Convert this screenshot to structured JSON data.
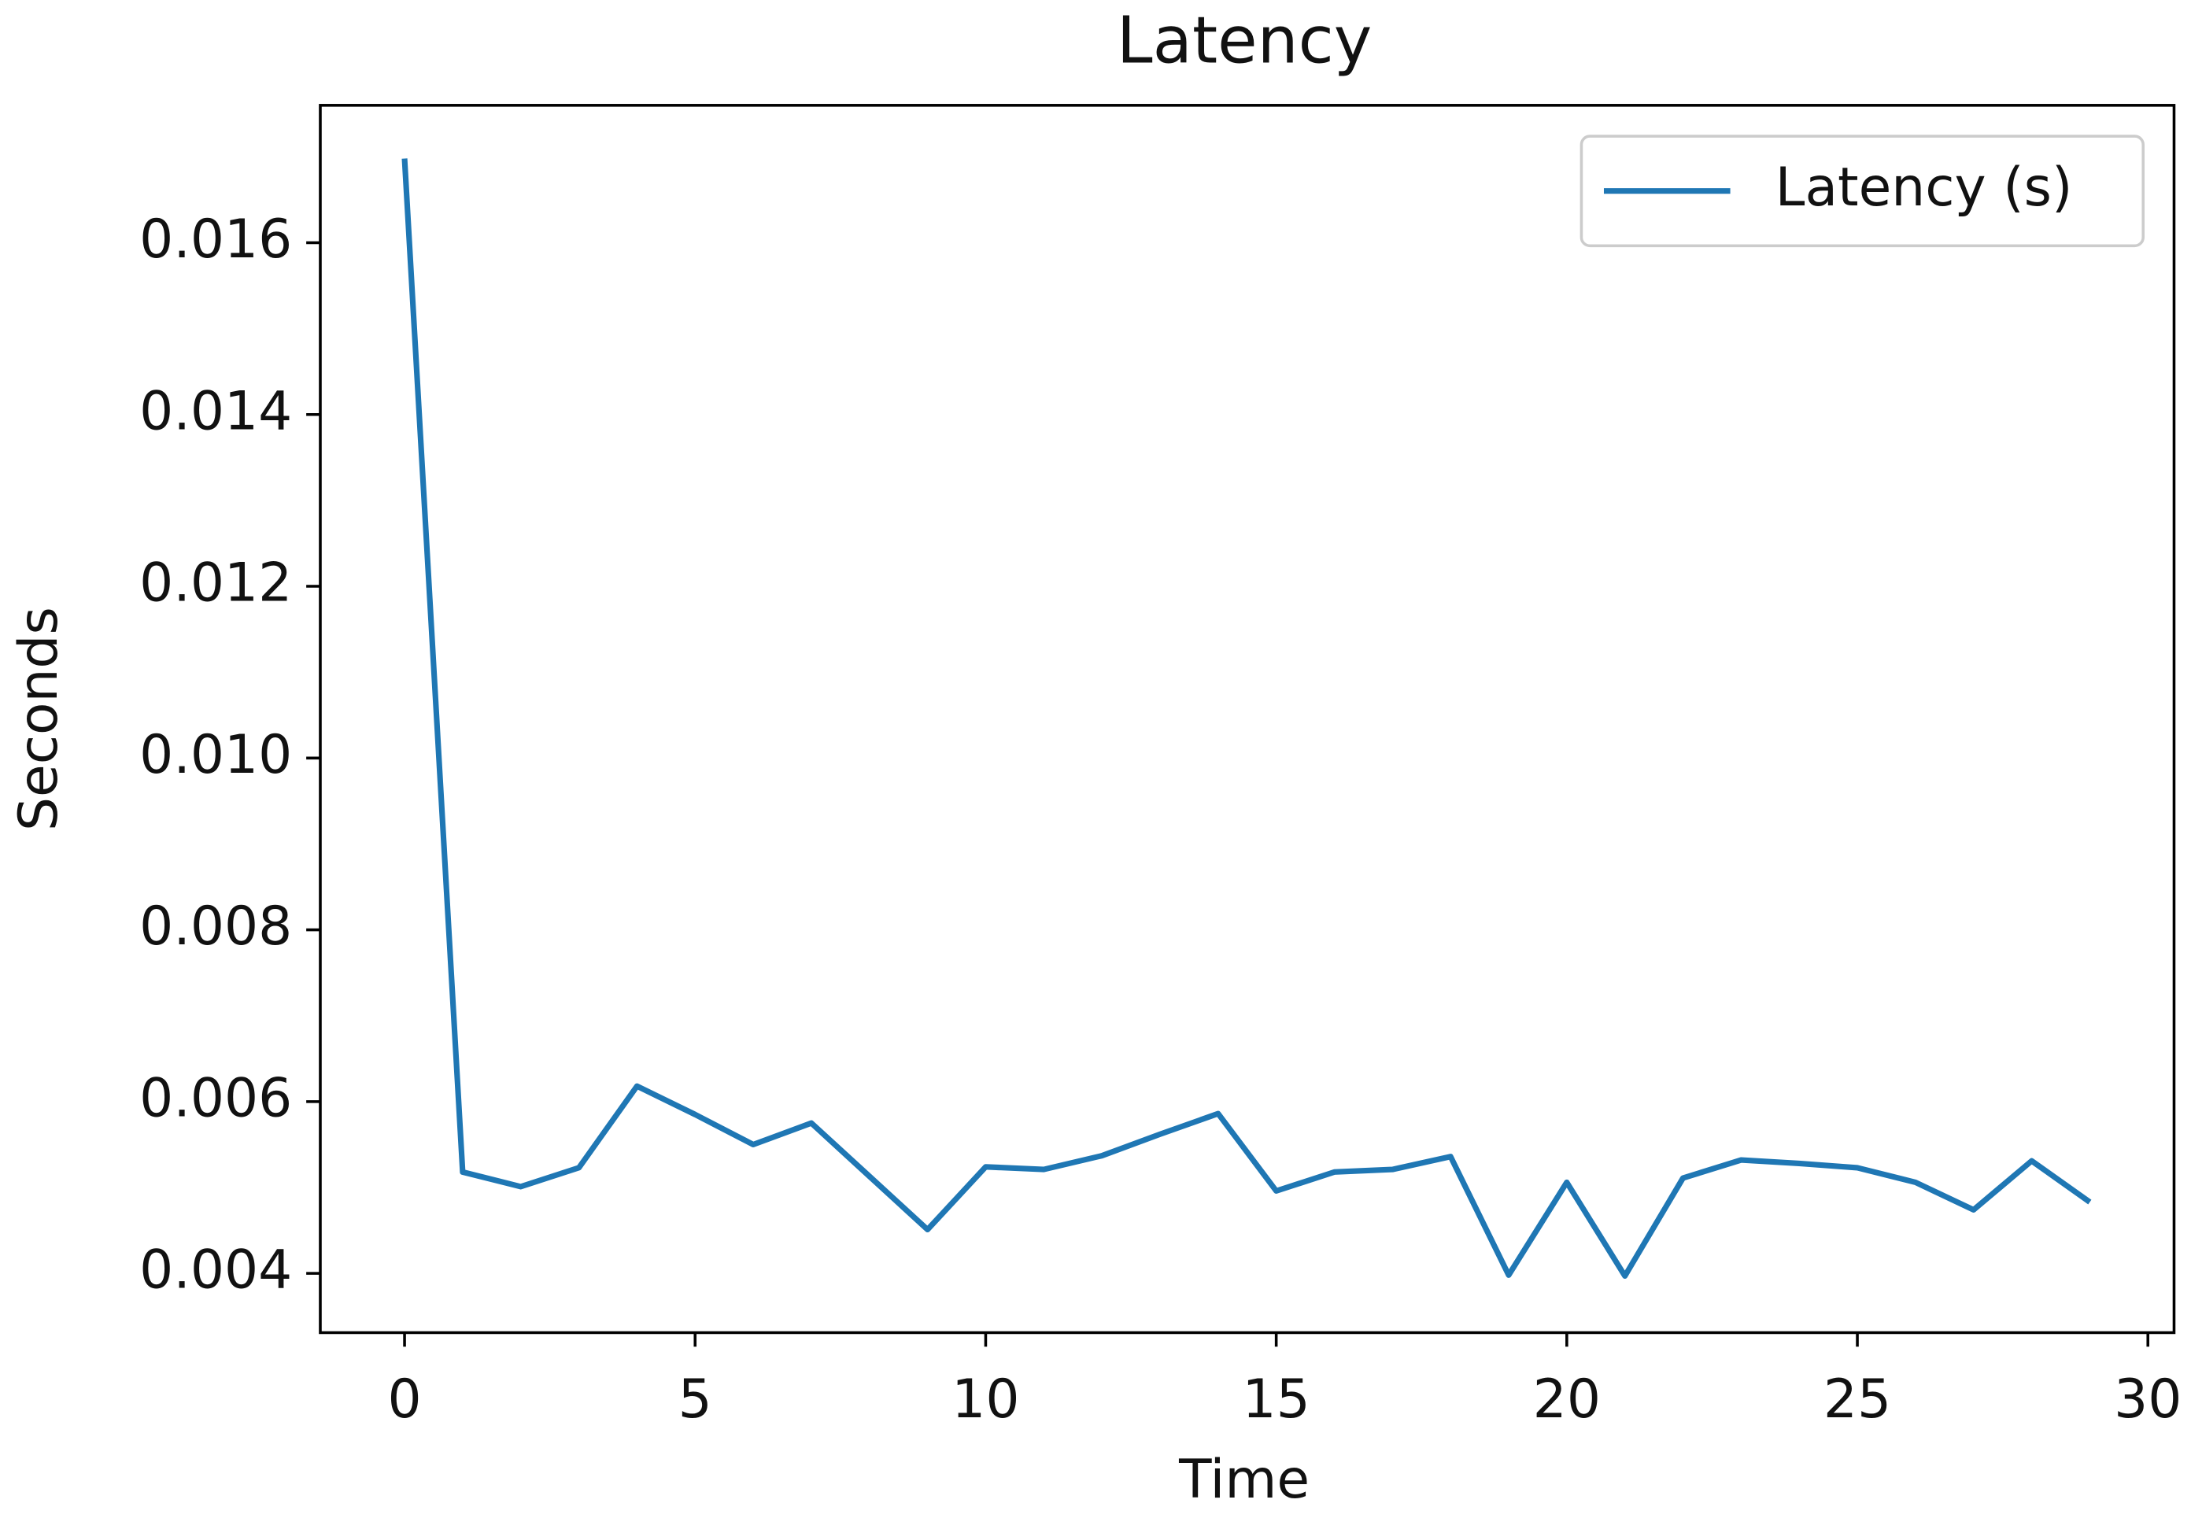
{
  "chart_data": {
    "type": "line",
    "title": "Latency",
    "xlabel": "Time",
    "ylabel": "Seconds",
    "x": [
      0,
      1,
      2,
      3,
      4,
      5,
      6,
      7,
      8,
      9,
      10,
      11,
      12,
      13,
      14,
      15,
      16,
      17,
      18,
      19,
      20,
      21,
      22,
      23,
      24,
      25,
      26,
      27,
      28,
      29
    ],
    "series": [
      {
        "name": "Latency (s)",
        "color": "#1f77b4",
        "values": [
          0.01698,
          0.00518,
          0.00501,
          0.00523,
          0.00618,
          0.00585,
          0.0055,
          0.00575,
          0.00513,
          0.00451,
          0.00524,
          0.00521,
          0.00537,
          0.00562,
          0.00586,
          0.00496,
          0.00518,
          0.00521,
          0.00536,
          0.00398,
          0.00506,
          0.00397,
          0.00511,
          0.00532,
          0.00528,
          0.00523,
          0.00506,
          0.00474,
          0.00531,
          0.00483
        ]
      }
    ],
    "xlim": [
      -1.45,
      30.45
    ],
    "xticks": [
      0,
      5,
      10,
      15,
      20,
      25,
      30
    ],
    "ylim": [
      0.00331,
      0.0176
    ],
    "yticks": [
      0.004,
      0.006,
      0.008,
      {
        "value": 0.01,
        "label": "0.010"
      },
      0.012,
      0.014,
      0.016
    ],
    "legend": "upper right",
    "grid": false
  }
}
